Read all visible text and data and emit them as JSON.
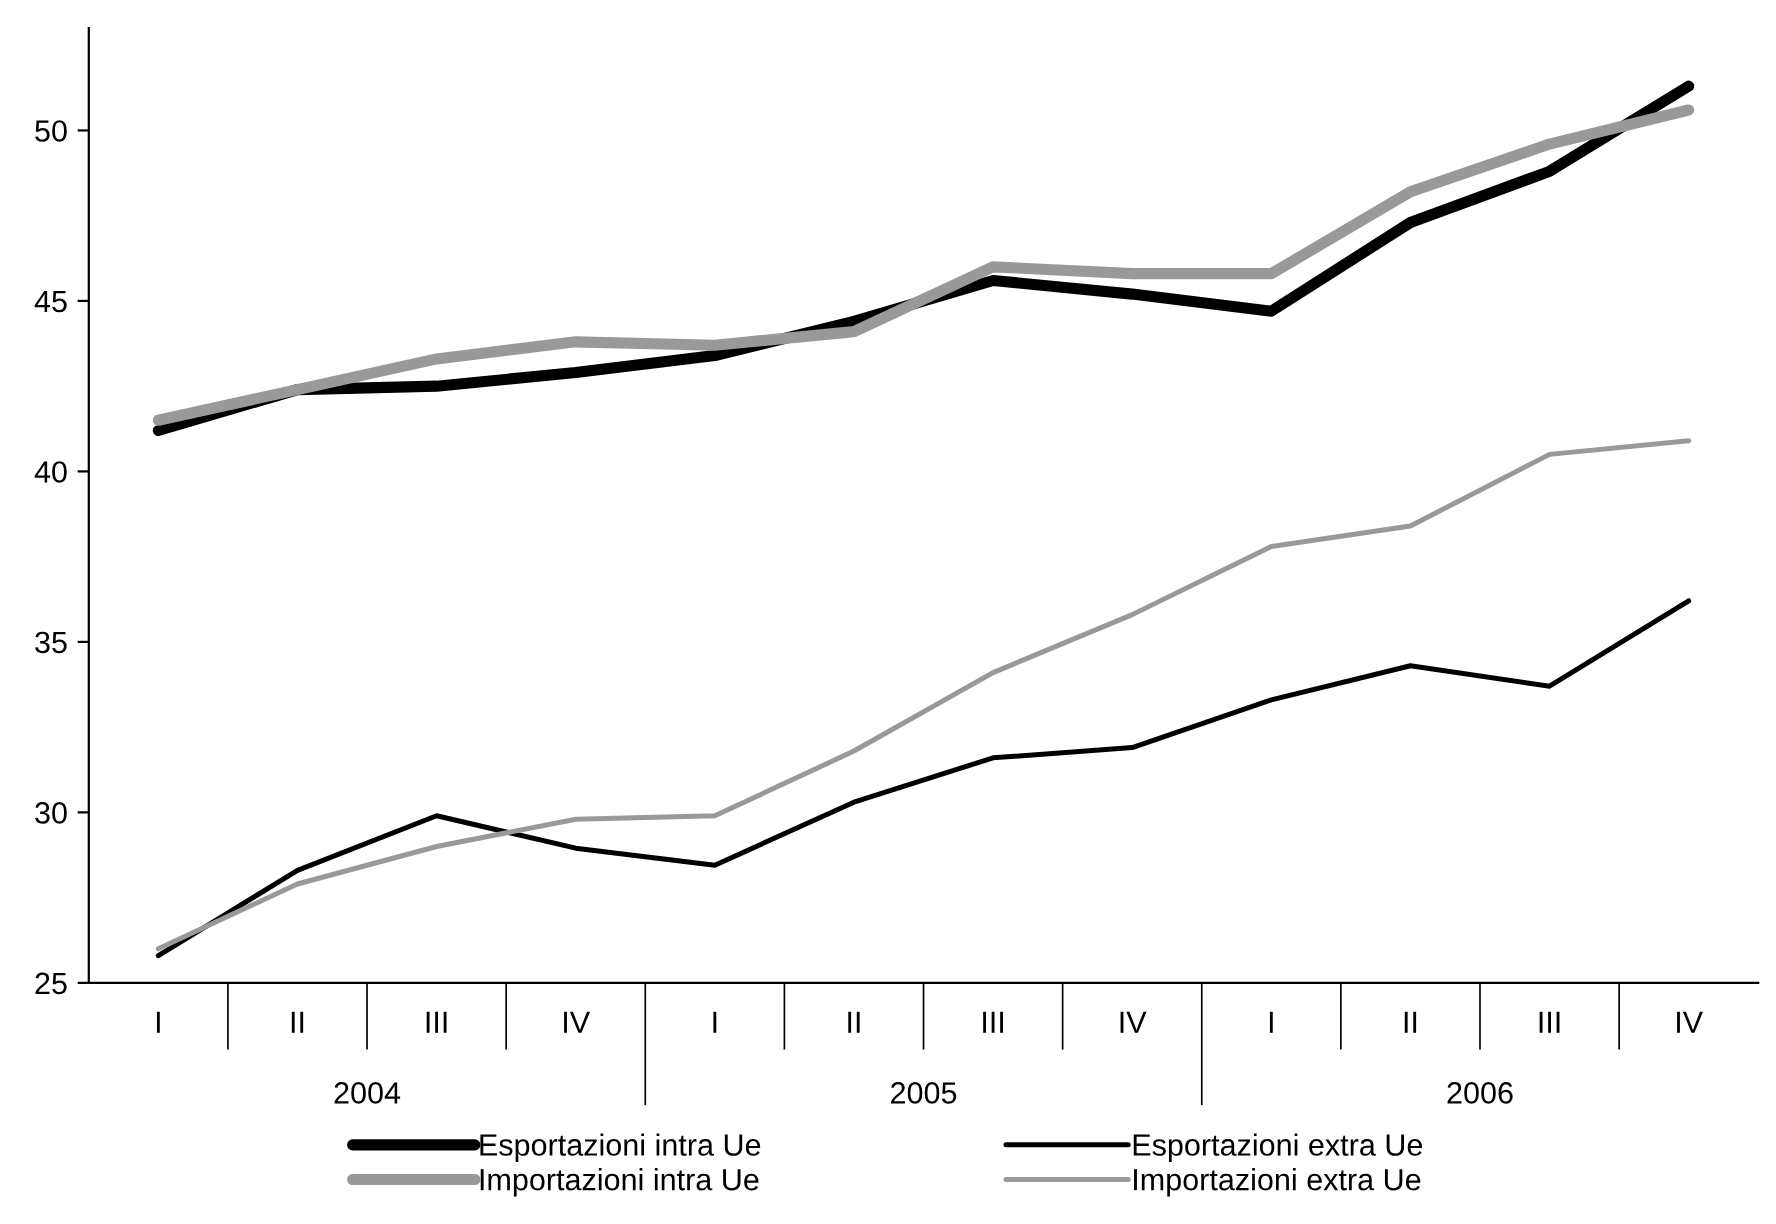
{
  "chart_data": {
    "type": "line",
    "categories": [
      "I",
      "II",
      "III",
      "IV",
      "I",
      "II",
      "III",
      "IV",
      "I",
      "II",
      "III",
      "IV"
    ],
    "annotations": [
      "2004",
      "2005",
      "2006"
    ],
    "series": [
      {
        "name": "Esportazioni intra Ue",
        "color": "#000000",
        "values": [
          41.2,
          42.4,
          42.5,
          42.9,
          43.4,
          44.4,
          45.6,
          45.2,
          44.7,
          47.3,
          48.8,
          51.3
        ]
      },
      {
        "name": "Importazioni intra Ue",
        "color": "#999999",
        "values": [
          41.5,
          42.4,
          43.3,
          43.8,
          43.7,
          44.1,
          46.0,
          45.8,
          45.8,
          48.2,
          49.6,
          50.6
        ]
      },
      {
        "name": "Esportazioni extra Ue",
        "color": "#000000",
        "values": [
          25.8,
          28.3,
          29.9,
          28.95,
          28.45,
          30.3,
          31.6,
          31.9,
          33.3,
          34.3,
          33.7,
          36.2
        ]
      },
      {
        "name": "Importazioni extra Ue",
        "color": "#999999",
        "values": [
          26.0,
          27.9,
          29.0,
          29.8,
          29.9,
          31.8,
          34.1,
          35.8,
          37.8,
          38.4,
          40.5,
          40.9
        ]
      }
    ],
    "ylim": [
      25,
      53
    ],
    "yticks": [
      25,
      30,
      35,
      40,
      45,
      50
    ],
    "grid": false,
    "legend": "bottom",
    "marker": "none",
    "line_style": "solid"
  }
}
